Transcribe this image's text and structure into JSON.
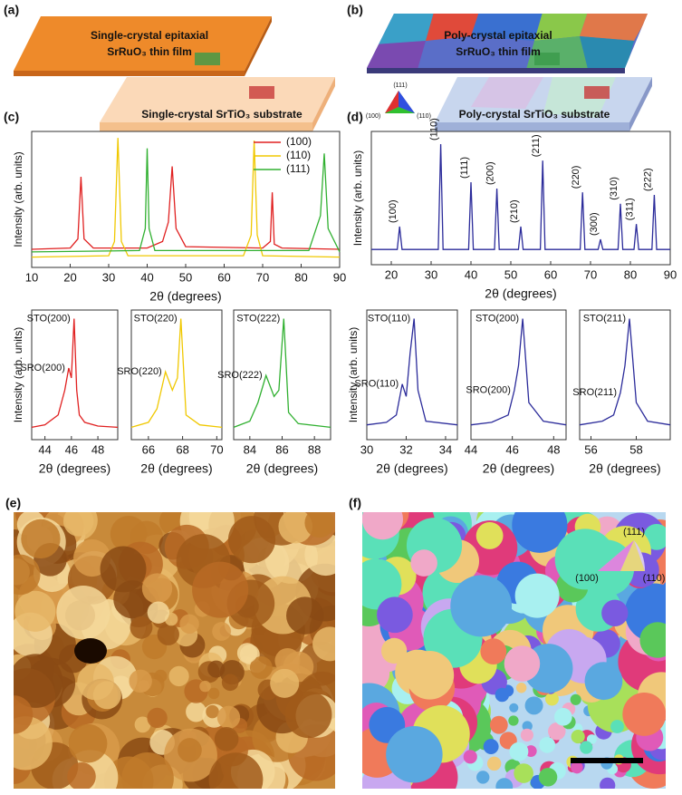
{
  "panels": {
    "a": {
      "label": "(a)",
      "film": [
        "Single-crystal epitaxial",
        "SrRuO₃ thin film"
      ],
      "substrate": "Single-crystal SrTiO₃ substrate"
    },
    "b": {
      "label": "(b)",
      "film": [
        "Poly-crystal epitaxial",
        "SrRuO₃ thin film"
      ],
      "substrate": "Poly-crystal SrTiO₃ substrate",
      "legend": [
        "(111)",
        "(100)",
        "(110)"
      ]
    },
    "c": {
      "label": "(c)"
    },
    "d": {
      "label": "(d)"
    },
    "e": {
      "label": "(e)"
    },
    "f": {
      "label": "(f)",
      "legend": [
        "(111)",
        "(100)",
        "(110)"
      ]
    }
  },
  "chart_data": [
    {
      "type": "line",
      "xlabel": "2θ (degrees)",
      "ylabel": "Intensity (arb. units)",
      "xlim": [
        10,
        90
      ],
      "xticks": [
        10,
        20,
        30,
        40,
        50,
        60,
        70,
        80,
        90
      ],
      "ylim": [
        0,
        105
      ],
      "legend": "upper-right",
      "series": [
        {
          "name": "(100)",
          "color": "#e02020",
          "x": [
            10,
            20,
            22,
            22.8,
            23.6,
            26,
            40,
            44,
            45.5,
            46.5,
            47.5,
            50,
            70,
            72,
            72.5,
            73,
            75,
            90
          ],
          "values": [
            14,
            15,
            22,
            70,
            22,
            15,
            15,
            20,
            35,
            78,
            30,
            16,
            15,
            20,
            58,
            18,
            15,
            14
          ]
        },
        {
          "name": "(110)",
          "color": "#f0c800",
          "x": [
            10,
            30,
            31.5,
            32.4,
            33.3,
            35,
            65,
            67,
            67.8,
            68.6,
            70,
            90
          ],
          "values": [
            8,
            9,
            20,
            100,
            20,
            9,
            9,
            25,
            98,
            25,
            9,
            8
          ]
        },
        {
          "name": "(111)",
          "color": "#30b030",
          "x": [
            10,
            38,
            39.5,
            40,
            40.5,
            42,
            82,
            85,
            86,
            87,
            90
          ],
          "values": [
            12,
            13,
            30,
            92,
            30,
            13,
            13,
            40,
            88,
            30,
            12
          ]
        }
      ]
    },
    {
      "type": "line",
      "xlabel": "2θ (degrees)",
      "ylabel": "Intensity (arb. units)",
      "xlim": [
        43,
        49.5
      ],
      "xticks": [
        44,
        46,
        48
      ],
      "ylim": [
        0,
        105
      ],
      "series": [
        {
          "color": "#e02020",
          "x": [
            43,
            44,
            45,
            45.5,
            45.8,
            46.0,
            46.2,
            46.4,
            46.6,
            47,
            48,
            49.5
          ],
          "values": [
            10,
            12,
            20,
            40,
            58,
            50,
            98,
            40,
            20,
            14,
            11,
            10
          ],
          "labels": [
            null,
            null,
            null,
            null,
            "SRO(200)",
            null,
            "STO(200)",
            null,
            null,
            null,
            null,
            null
          ]
        }
      ]
    },
    {
      "type": "line",
      "xlabel": "2θ (degrees)",
      "xlim": [
        65,
        70.3
      ],
      "xticks": [
        66,
        68,
        70
      ],
      "ylim": [
        0,
        105
      ],
      "series": [
        {
          "color": "#f0c800",
          "x": [
            65,
            66,
            66.5,
            67,
            67.4,
            67.7,
            67.9,
            68.2,
            69,
            70.3
          ],
          "values": [
            10,
            14,
            25,
            55,
            40,
            50,
            98,
            20,
            12,
            10
          ],
          "labels": [
            null,
            null,
            null,
            "SRO(220)",
            null,
            null,
            "STO(220)",
            null,
            null,
            null
          ]
        }
      ]
    },
    {
      "type": "line",
      "xlabel": "2θ (degrees)",
      "xlim": [
        83,
        89
      ],
      "xticks": [
        84,
        86,
        88
      ],
      "ylim": [
        0,
        105
      ],
      "series": [
        {
          "color": "#30b030",
          "x": [
            83,
            84,
            84.5,
            85,
            85.5,
            85.8,
            86.1,
            86.4,
            87,
            89
          ],
          "values": [
            10,
            15,
            30,
            52,
            35,
            40,
            98,
            22,
            13,
            10
          ],
          "labels": [
            null,
            null,
            null,
            "SRO(222)",
            null,
            null,
            "STO(222)",
            null,
            null,
            null
          ]
        }
      ]
    },
    {
      "type": "line",
      "xlabel": "2θ (degrees)",
      "ylabel": "Intensity (arb. units)",
      "xlim": [
        15,
        90
      ],
      "xticks": [
        20,
        30,
        40,
        50,
        60,
        70,
        80,
        90
      ],
      "ylim": [
        0,
        105
      ],
      "series": [
        {
          "color": "#2b2b9a",
          "x": [
            15,
            21.5,
            22.1,
            22.7,
            31.8,
            32.4,
            33,
            39.4,
            40,
            40.6,
            45.9,
            46.5,
            47.1,
            51.9,
            52.5,
            53.1,
            57.4,
            58,
            58.6,
            67.4,
            68,
            68.6,
            71.9,
            72.5,
            73.1,
            76.9,
            77.5,
            78.1,
            80.9,
            81.5,
            82.1,
            85.4,
            86,
            86.6,
            90
          ],
          "values": [
            12,
            12,
            30,
            12,
            12,
            95,
            12,
            12,
            65,
            12,
            12,
            60,
            12,
            12,
            30,
            12,
            12,
            82,
            12,
            12,
            57,
            12,
            12,
            20,
            12,
            12,
            48,
            12,
            12,
            32,
            12,
            12,
            55,
            12,
            12
          ],
          "labels": [
            null,
            null,
            "(100)",
            null,
            null,
            "(110)",
            null,
            null,
            "(111)",
            null,
            null,
            "(200)",
            null,
            null,
            "(210)",
            null,
            null,
            "(211)",
            null,
            null,
            "(220)",
            null,
            null,
            "(300)",
            null,
            null,
            "(310)",
            null,
            null,
            "(311)",
            null,
            null,
            "(222)",
            null,
            null
          ]
        }
      ]
    },
    {
      "type": "line",
      "xlabel": "2θ (degrees)",
      "ylabel": "Intensity (arb. units)",
      "xlim": [
        30,
        34.6
      ],
      "xticks": [
        30,
        32,
        34
      ],
      "ylim": [
        0,
        105
      ],
      "series": [
        {
          "color": "#2b2b9a",
          "x": [
            30,
            31,
            31.5,
            31.8,
            32,
            32.2,
            32.4,
            32.6,
            33,
            34.6
          ],
          "values": [
            12,
            14,
            20,
            45,
            35,
            70,
            98,
            40,
            15,
            12
          ],
          "labels": [
            null,
            null,
            null,
            "SRO(110)",
            null,
            null,
            "STO(110)",
            null,
            null,
            null
          ]
        }
      ]
    },
    {
      "type": "line",
      "xlabel": "2θ (degrees)",
      "xlim": [
        44,
        48.6
      ],
      "xticks": [
        44,
        46,
        48
      ],
      "ylim": [
        0,
        105
      ],
      "series": [
        {
          "color": "#2b2b9a",
          "x": [
            44,
            45,
            45.8,
            46.1,
            46.3,
            46.5,
            46.8,
            47.5,
            48.6
          ],
          "values": [
            12,
            14,
            20,
            40,
            60,
            98,
            30,
            15,
            12
          ],
          "labels": [
            null,
            null,
            null,
            "SRO(200)",
            null,
            "STO(200)",
            null,
            null,
            null
          ]
        }
      ]
    },
    {
      "type": "line",
      "xlabel": "2θ (degrees)",
      "xlim": [
        55.5,
        59.5
      ],
      "xticks": [
        56,
        58
      ],
      "ylim": [
        0,
        105
      ],
      "series": [
        {
          "color": "#2b2b9a",
          "x": [
            55.5,
            56.5,
            57,
            57.3,
            57.5,
            57.7,
            58,
            58.5,
            59.5
          ],
          "values": [
            12,
            15,
            20,
            38,
            60,
            98,
            30,
            15,
            12
          ],
          "labels": [
            null,
            null,
            null,
            "SRO(211)",
            null,
            "STO(211)",
            null,
            null,
            null
          ]
        }
      ]
    }
  ]
}
